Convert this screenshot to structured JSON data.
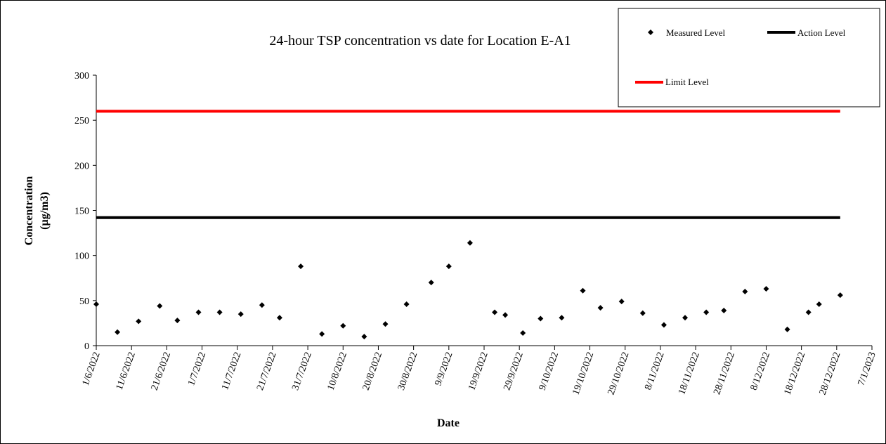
{
  "chart_data": {
    "type": "scatter",
    "title": "24-hour TSP concentration vs date for Location E-A1",
    "xlabel": "Date",
    "ylabel_lines": [
      "Concentration",
      "(µg/m3)"
    ],
    "ylim": [
      0,
      300
    ],
    "yticks": [
      0,
      50,
      100,
      150,
      200,
      250,
      300
    ],
    "xlim": [
      "2022-06-01",
      "2023-01-07"
    ],
    "xticks": [
      "2022-06-01",
      "2022-06-11",
      "2022-06-21",
      "2022-07-01",
      "2022-07-11",
      "2022-07-21",
      "2022-07-31",
      "2022-08-10",
      "2022-08-20",
      "2022-08-30",
      "2022-09-09",
      "2022-09-19",
      "2022-09-29",
      "2022-10-09",
      "2022-10-19",
      "2022-10-29",
      "2022-11-08",
      "2022-11-18",
      "2022-11-28",
      "2022-12-08",
      "2022-12-18",
      "2022-12-28",
      "2023-01-07"
    ],
    "xtick_labels": [
      "1/6/2022",
      "11/6/2022",
      "21/6/2022",
      "1/7/2022",
      "11/7/2022",
      "21/7/2022",
      "31/7/2022",
      "10/8/2022",
      "20/8/2022",
      "30/8/2022",
      "9/9/2022",
      "19/9/2022",
      "29/9/2022",
      "9/10/2022",
      "19/10/2022",
      "29/10/2022",
      "8/11/2022",
      "18/11/2022",
      "28/11/2022",
      "8/12/2022",
      "18/12/2022",
      "28/12/2022",
      "7/1/2023"
    ],
    "legend_position": "top-right",
    "series": [
      {
        "name": "Measured Level",
        "type": "scatter",
        "marker": "diamond",
        "color": "#000000",
        "points": [
          {
            "x": "2022-06-01",
            "y": 46
          },
          {
            "x": "2022-06-07",
            "y": 15
          },
          {
            "x": "2022-06-13",
            "y": 27
          },
          {
            "x": "2022-06-19",
            "y": 44
          },
          {
            "x": "2022-06-24",
            "y": 28
          },
          {
            "x": "2022-06-30",
            "y": 37
          },
          {
            "x": "2022-07-06",
            "y": 37
          },
          {
            "x": "2022-07-12",
            "y": 35
          },
          {
            "x": "2022-07-18",
            "y": 45
          },
          {
            "x": "2022-07-23",
            "y": 31
          },
          {
            "x": "2022-07-29",
            "y": 88
          },
          {
            "x": "2022-08-04",
            "y": 13
          },
          {
            "x": "2022-08-10",
            "y": 22
          },
          {
            "x": "2022-08-16",
            "y": 10
          },
          {
            "x": "2022-08-22",
            "y": 24
          },
          {
            "x": "2022-08-28",
            "y": 46
          },
          {
            "x": "2022-09-04",
            "y": 70
          },
          {
            "x": "2022-09-09",
            "y": 88
          },
          {
            "x": "2022-09-15",
            "y": 114
          },
          {
            "x": "2022-09-22",
            "y": 37
          },
          {
            "x": "2022-09-25",
            "y": 34
          },
          {
            "x": "2022-09-30",
            "y": 14
          },
          {
            "x": "2022-10-05",
            "y": 30
          },
          {
            "x": "2022-10-11",
            "y": 31
          },
          {
            "x": "2022-10-17",
            "y": 61
          },
          {
            "x": "2022-10-22",
            "y": 42
          },
          {
            "x": "2022-10-28",
            "y": 49
          },
          {
            "x": "2022-11-03",
            "y": 36
          },
          {
            "x": "2022-11-09",
            "y": 23
          },
          {
            "x": "2022-11-15",
            "y": 31
          },
          {
            "x": "2022-11-21",
            "y": 37
          },
          {
            "x": "2022-11-26",
            "y": 39
          },
          {
            "x": "2022-12-02",
            "y": 60
          },
          {
            "x": "2022-12-08",
            "y": 63
          },
          {
            "x": "2022-12-14",
            "y": 18
          },
          {
            "x": "2022-12-20",
            "y": 37
          },
          {
            "x": "2022-12-23",
            "y": 46
          },
          {
            "x": "2022-12-29",
            "y": 56
          }
        ]
      },
      {
        "name": "Action Level",
        "type": "line",
        "color": "#000000",
        "points": [
          {
            "x": "2022-06-01",
            "y": 142
          },
          {
            "x": "2022-12-29",
            "y": 142
          }
        ]
      },
      {
        "name": "Limit Level",
        "type": "line",
        "color": "#ff0000",
        "points": [
          {
            "x": "2022-06-01",
            "y": 260
          },
          {
            "x": "2022-12-29",
            "y": 260
          }
        ]
      }
    ]
  }
}
